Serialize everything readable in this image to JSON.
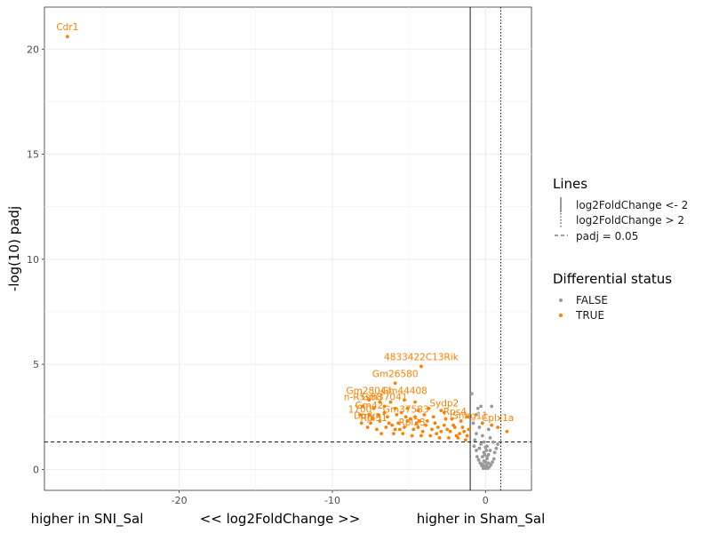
{
  "chart_data": {
    "type": "scatter",
    "title": "",
    "xlabel": "<< log2FoldChange >>",
    "xlabel_left": "higher in SNI_Sal",
    "xlabel_right": "higher in Sham_Sal",
    "ylabel": "-log(10) padj",
    "xlim": [
      -28.8,
      3.0
    ],
    "ylim": [
      -1.0,
      22.0
    ],
    "x_ticks": [
      -20,
      -10,
      0
    ],
    "x_tick_labels": [
      "-20",
      "-10",
      "0"
    ],
    "y_ticks": [
      0,
      5,
      10,
      15,
      20
    ],
    "y_tick_labels": [
      "0",
      "5",
      "10",
      "15",
      "20"
    ],
    "grid": true,
    "reference_lines": {
      "vline_solid": {
        "x": -1,
        "label": "log2FoldChange <- 2"
      },
      "vline_dotted": {
        "x": 1,
        "label": "log2FoldChange > 2"
      },
      "hline_dashed": {
        "y": 1.3,
        "label": "padj = 0.05"
      }
    },
    "legends": {
      "lines_title": "Lines",
      "status_title": "Differential status",
      "status_entries": [
        {
          "name": "FALSE",
          "color": "#999999"
        },
        {
          "name": "TRUE",
          "color": "#FF8000"
        }
      ]
    },
    "labeled_points": [
      {
        "label": "Cdr1",
        "x": -27.3,
        "y": 20.6
      },
      {
        "label": "4833422C13Rik",
        "x": -4.2,
        "y": 4.9
      },
      {
        "label": "Gm26580",
        "x": -5.9,
        "y": 4.1
      },
      {
        "label": "Gm28044",
        "x": -7.6,
        "y": 3.3
      },
      {
        "label": "Gm44408",
        "x": -5.3,
        "y": 3.3
      },
      {
        "label": "n-R5s88",
        "x": -8.0,
        "y": 3.0
      },
      {
        "label": "Gm37041",
        "x": -6.6,
        "y": 3.0
      },
      {
        "label": "Sydp2",
        "x": -2.7,
        "y": 2.7
      },
      {
        "label": "1700",
        "x": -8.2,
        "y": 2.4
      },
      {
        "label": "Gm37583",
        "x": -5.2,
        "y": 2.4
      },
      {
        "label": "Rps4",
        "x": -2.0,
        "y": 2.3
      },
      {
        "label": "Rpl31",
        "x": -7.3,
        "y": 2.0
      },
      {
        "label": "Rpl23",
        "x": -4.8,
        "y": 1.8
      },
      {
        "label": "Dmkn",
        "x": -7.7,
        "y": 2.1
      },
      {
        "label": "Snhg11",
        "x": -1.0,
        "y": 2.1
      },
      {
        "label": "Cplx1a",
        "x": 0.8,
        "y": 2.0
      },
      {
        "label": "Gm42",
        "x": -7.6,
        "y": 2.6
      }
    ],
    "series": [
      {
        "name": "TRUE",
        "points": [
          [
            -27.3,
            20.6
          ],
          [
            -4.2,
            4.9
          ],
          [
            -5.9,
            4.1
          ],
          [
            -7.6,
            3.3
          ],
          [
            -6.9,
            3.2
          ],
          [
            -6.2,
            3.2
          ],
          [
            -5.3,
            3.3
          ],
          [
            -4.6,
            3.2
          ],
          [
            -8.0,
            3.0
          ],
          [
            -7.3,
            2.9
          ],
          [
            -6.6,
            3.0
          ],
          [
            -5.9,
            2.9
          ],
          [
            -5.1,
            2.9
          ],
          [
            -4.4,
            2.8
          ],
          [
            -3.7,
            2.9
          ],
          [
            -2.9,
            2.8
          ],
          [
            -8.2,
            2.6
          ],
          [
            -7.6,
            2.6
          ],
          [
            -7.0,
            2.6
          ],
          [
            -6.4,
            2.5
          ],
          [
            -5.8,
            2.6
          ],
          [
            -5.2,
            2.5
          ],
          [
            -4.6,
            2.5
          ],
          [
            -4.0,
            2.6
          ],
          [
            -3.4,
            2.5
          ],
          [
            -2.7,
            2.7
          ],
          [
            -2.2,
            2.4
          ],
          [
            -1.6,
            2.3
          ],
          [
            -1.2,
            2.5
          ],
          [
            -8.1,
            2.2
          ],
          [
            -7.5,
            2.2
          ],
          [
            -6.9,
            2.3
          ],
          [
            -6.3,
            2.2
          ],
          [
            -5.7,
            2.2
          ],
          [
            -5.1,
            2.3
          ],
          [
            -4.5,
            2.2
          ],
          [
            -3.9,
            2.1
          ],
          [
            -3.3,
            2.2
          ],
          [
            -2.7,
            2.1
          ],
          [
            -2.1,
            2.1
          ],
          [
            -1.5,
            2.0
          ],
          [
            -1.1,
            1.9
          ],
          [
            -7.7,
            2.0
          ],
          [
            -7.1,
            1.9
          ],
          [
            -6.5,
            2.0
          ],
          [
            -5.9,
            1.9
          ],
          [
            -5.3,
            2.0
          ],
          [
            -4.7,
            1.9
          ],
          [
            -4.1,
            1.8
          ],
          [
            -3.5,
            1.9
          ],
          [
            -2.9,
            1.8
          ],
          [
            -2.3,
            1.8
          ],
          [
            -1.7,
            1.7
          ],
          [
            -1.2,
            1.6
          ],
          [
            -6.8,
            1.7
          ],
          [
            -6.0,
            1.7
          ],
          [
            -5.4,
            1.7
          ],
          [
            -4.8,
            1.6
          ],
          [
            -4.2,
            1.6
          ],
          [
            -3.6,
            1.6
          ],
          [
            -3.0,
            1.5
          ],
          [
            -2.4,
            1.5
          ],
          [
            -1.8,
            1.5
          ],
          [
            -1.3,
            1.4
          ],
          [
            -5.6,
            1.9
          ],
          [
            -4.9,
            2.4
          ],
          [
            -3.8,
            2.3
          ],
          [
            -2.6,
            2.4
          ],
          [
            -6.6,
            2.7
          ],
          [
            -5.5,
            2.7
          ],
          [
            -4.3,
            2.3
          ],
          [
            -3.1,
            2.0
          ],
          [
            -7.4,
            2.4
          ],
          [
            -2.0,
            2.0
          ],
          [
            -1.4,
            1.8
          ],
          [
            -6.1,
            2.1
          ],
          [
            -4.4,
            2.0
          ],
          [
            -3.2,
            1.7
          ],
          [
            -2.5,
            1.9
          ],
          [
            -1.9,
            1.6
          ],
          [
            -0.2,
            2.2
          ],
          [
            0.4,
            2.1
          ],
          [
            0.8,
            2.0
          ],
          [
            1.4,
            1.8
          ]
        ]
      },
      {
        "name": "FALSE",
        "points": [
          [
            -0.9,
            3.6
          ],
          [
            -0.5,
            2.9
          ],
          [
            -0.3,
            3.0
          ],
          [
            0.4,
            3.0
          ],
          [
            -0.6,
            2.6
          ],
          [
            -0.8,
            2.2
          ],
          [
            -0.4,
            2.0
          ],
          [
            0.2,
            1.9
          ],
          [
            -0.6,
            1.7
          ],
          [
            -0.2,
            1.6
          ],
          [
            0.3,
            1.5
          ],
          [
            0.5,
            1.3
          ],
          [
            -0.7,
            1.4
          ],
          [
            -0.3,
            1.2
          ],
          [
            0.1,
            1.1
          ],
          [
            -0.4,
            1.0
          ],
          [
            0.3,
            0.9
          ],
          [
            -0.1,
            0.8
          ],
          [
            0.2,
            0.7
          ],
          [
            -0.2,
            0.6
          ],
          [
            0.1,
            0.5
          ],
          [
            -0.1,
            0.4
          ],
          [
            0.2,
            0.3
          ],
          [
            -0.2,
            0.25
          ],
          [
            0.05,
            0.2
          ],
          [
            -0.05,
            0.15
          ],
          [
            0.1,
            0.1
          ],
          [
            -0.1,
            0.08
          ],
          [
            0.0,
            0.05
          ],
          [
            0.15,
            0.05
          ],
          [
            -0.15,
            0.05
          ],
          [
            0.25,
            0.12
          ],
          [
            -0.25,
            0.18
          ],
          [
            0.35,
            0.22
          ],
          [
            -0.35,
            0.3
          ],
          [
            0.45,
            0.35
          ],
          [
            -0.45,
            0.45
          ],
          [
            0.55,
            0.5
          ],
          [
            -0.55,
            0.6
          ],
          [
            0.6,
            0.8
          ],
          [
            -0.6,
            0.9
          ],
          [
            0.7,
            1.0
          ],
          [
            -0.75,
            1.1
          ],
          [
            0.8,
            1.2
          ],
          [
            0.0,
            1.05
          ],
          [
            0.05,
            0.9
          ],
          [
            -0.05,
            0.7
          ],
          [
            0.0,
            0.35
          ],
          [
            0.1,
            0.6
          ],
          [
            -0.1,
            1.3
          ]
        ]
      }
    ]
  }
}
